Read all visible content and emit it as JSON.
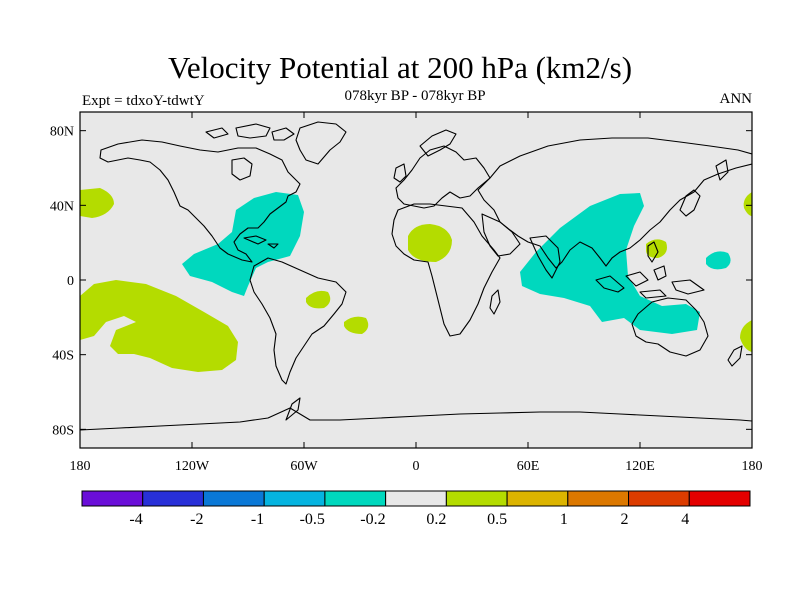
{
  "header": {
    "title": "Velocity Potential at 200 hPa (km2/s)",
    "subtitle": "078kyr BP - 078kyr BP",
    "experiment": "Expt = tdxoY-tdwtY",
    "season": "ANN"
  },
  "map": {
    "projection": "cylindrical-equidistant",
    "lon_range": [
      -180,
      180
    ],
    "lat_range": [
      -90,
      90
    ],
    "background_color": "#e8e8e8",
    "coastline_color": "#000000",
    "y_ticks": [
      {
        "lat": 80,
        "label": "80N"
      },
      {
        "lat": 40,
        "label": "40N"
      },
      {
        "lat": 0,
        "label": "0"
      },
      {
        "lat": -40,
        "label": "40S"
      },
      {
        "lat": -80,
        "label": "80S"
      }
    ],
    "x_ticks": [
      {
        "lon": -180,
        "label": "180"
      },
      {
        "lon": -120,
        "label": "120W"
      },
      {
        "lon": -60,
        "label": "60W"
      },
      {
        "lon": 0,
        "label": "0"
      },
      {
        "lon": 60,
        "label": "60E"
      },
      {
        "lon": 120,
        "label": "120E"
      },
      {
        "lon": 180,
        "label": "180"
      }
    ]
  },
  "colorbar": {
    "colors": [
      "#6a0ed8",
      "#2830d8",
      "#0a78d6",
      "#05b4e0",
      "#00d8be",
      "#e8e8e8",
      "#b4dc00",
      "#dcb400",
      "#dc7800",
      "#dc3c00",
      "#e40000"
    ],
    "labels": [
      "-4",
      "-2",
      "-1",
      "-0.5",
      "-0.2",
      "0.2",
      "0.5",
      "1",
      "2",
      "4"
    ]
  }
}
